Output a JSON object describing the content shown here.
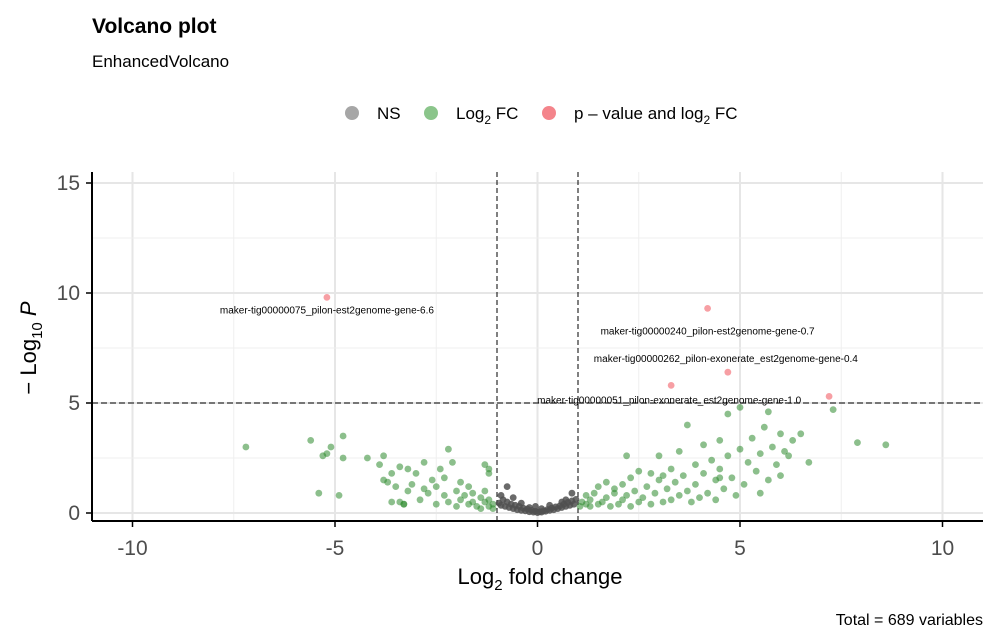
{
  "chart_data": {
    "type": "scatter",
    "title": "Volcano plot",
    "subtitle": "EnhancedVolcano",
    "caption": "Total = 689 variables",
    "xlabel": {
      "pre": "Log",
      "sub": "2",
      "post": " fold change"
    },
    "ylabel": {
      "pre": "− Log",
      "sub": "10",
      "post": " P"
    },
    "xlim": [
      -11,
      11
    ],
    "ylim": [
      0,
      15.5
    ],
    "xticks": [
      -10,
      -5,
      0,
      5,
      10
    ],
    "xtick_labels": [
      "-10",
      "-5",
      "0",
      "5",
      "10"
    ],
    "yticks": [
      0,
      5,
      10,
      15
    ],
    "ytick_labels": [
      "0",
      "5",
      "10",
      "15"
    ],
    "grid": true,
    "legend_position": "top",
    "legend": [
      {
        "key": "ns",
        "pre": "NS",
        "sub": "",
        "post": "",
        "color": "#808080"
      },
      {
        "key": "fc",
        "pre": "Log",
        "sub": "2",
        "post": " FC",
        "color": "#5aac5a"
      },
      {
        "key": "pfc",
        "pre": "p – value and log",
        "sub": "2",
        "post": " FC",
        "color": "#f0505a"
      }
    ],
    "fc_cutoff": [
      -1,
      1
    ],
    "p_cutoff": 5,
    "series": [
      {
        "key": "fc",
        "color": "#2e8b2e",
        "points": [
          [
            -7.2,
            3.0
          ],
          [
            -5.6,
            3.3
          ],
          [
            -5.2,
            2.7
          ],
          [
            -5.3,
            2.6
          ],
          [
            -5.1,
            3.0
          ],
          [
            -4.8,
            3.5
          ],
          [
            -4.8,
            2.5
          ],
          [
            -5.4,
            0.9
          ],
          [
            -4.9,
            0.8
          ],
          [
            -4.2,
            2.5
          ],
          [
            -3.9,
            2.2
          ],
          [
            -3.8,
            2.6
          ],
          [
            -3.8,
            1.5
          ],
          [
            -3.7,
            1.4
          ],
          [
            -3.6,
            1.8
          ],
          [
            -3.5,
            1.2
          ],
          [
            -3.6,
            0.5
          ],
          [
            -3.4,
            0.5
          ],
          [
            -3.3,
            0.4
          ],
          [
            -3.2,
            1.0
          ],
          [
            -3.4,
            2.1
          ],
          [
            -3.2,
            2.0
          ],
          [
            -3.1,
            1.3
          ],
          [
            -3.0,
            1.8
          ],
          [
            -2.9,
            0.6
          ],
          [
            -2.8,
            2.3
          ],
          [
            -2.8,
            1.1
          ],
          [
            -2.7,
            0.9
          ],
          [
            -2.6,
            1.5
          ],
          [
            -2.5,
            0.4
          ],
          [
            -2.4,
            2.0
          ],
          [
            -2.5,
            1.2
          ],
          [
            -2.3,
            0.8
          ],
          [
            -2.3,
            1.6
          ],
          [
            -2.2,
            0.5
          ],
          [
            -2.1,
            2.3
          ],
          [
            -2.0,
            1.0
          ],
          [
            -2.0,
            0.3
          ],
          [
            -1.9,
            1.4
          ],
          [
            -1.9,
            0.6
          ],
          [
            -1.8,
            0.8
          ],
          [
            -1.7,
            0.4
          ],
          [
            -1.7,
            1.2
          ],
          [
            -1.6,
            0.5
          ],
          [
            -1.6,
            0.9
          ],
          [
            -1.5,
            0.3
          ],
          [
            -1.4,
            0.7
          ],
          [
            -1.4,
            0.2
          ],
          [
            -1.3,
            0.5
          ],
          [
            -1.3,
            1.0
          ],
          [
            -1.2,
            0.3
          ],
          [
            -1.2,
            0.6
          ],
          [
            -1.1,
            0.4
          ],
          [
            -1.1,
            0.2
          ],
          [
            -1.2,
            1.8
          ],
          [
            -1.3,
            2.2
          ],
          [
            -1.2,
            2.0
          ],
          [
            -2.2,
            2.9
          ],
          [
            -3.3,
            0.4
          ],
          [
            1.05,
            0.3
          ],
          [
            1.1,
            0.5
          ],
          [
            1.2,
            0.4
          ],
          [
            1.2,
            0.8
          ],
          [
            1.3,
            0.3
          ],
          [
            1.3,
            0.6
          ],
          [
            1.4,
            0.9
          ],
          [
            1.5,
            0.4
          ],
          [
            1.5,
            1.2
          ],
          [
            1.6,
            0.5
          ],
          [
            1.7,
            0.7
          ],
          [
            1.7,
            1.4
          ],
          [
            1.8,
            0.3
          ],
          [
            1.9,
            0.9
          ],
          [
            1.9,
            1.1
          ],
          [
            2.0,
            0.4
          ],
          [
            2.1,
            1.3
          ],
          [
            2.1,
            0.6
          ],
          [
            2.2,
            0.8
          ],
          [
            2.3,
            1.6
          ],
          [
            2.3,
            0.3
          ],
          [
            2.4,
            1.0
          ],
          [
            2.5,
            0.5
          ],
          [
            2.5,
            1.9
          ],
          [
            2.6,
            0.7
          ],
          [
            2.7,
            1.2
          ],
          [
            2.8,
            0.4
          ],
          [
            2.8,
            1.8
          ],
          [
            2.9,
            0.9
          ],
          [
            3.0,
            2.6
          ],
          [
            3.0,
            1.5
          ],
          [
            3.1,
            0.5
          ],
          [
            3.2,
            1.1
          ],
          [
            3.3,
            2.0
          ],
          [
            3.3,
            0.6
          ],
          [
            3.4,
            1.4
          ],
          [
            3.5,
            2.8
          ],
          [
            3.5,
            0.8
          ],
          [
            3.6,
            1.7
          ],
          [
            3.7,
            4.0
          ],
          [
            3.7,
            1.0
          ],
          [
            3.8,
            0.5
          ],
          [
            3.9,
            2.2
          ],
          [
            3.9,
            1.3
          ],
          [
            4.0,
            0.7
          ],
          [
            4.1,
            3.1
          ],
          [
            4.1,
            1.8
          ],
          [
            4.2,
            0.9
          ],
          [
            4.3,
            2.4
          ],
          [
            4.4,
            1.5
          ],
          [
            4.4,
            0.6
          ],
          [
            4.5,
            3.3
          ],
          [
            4.5,
            2.0
          ],
          [
            4.6,
            1.1
          ],
          [
            4.7,
            4.5
          ],
          [
            4.7,
            2.6
          ],
          [
            4.8,
            1.6
          ],
          [
            4.9,
            0.8
          ],
          [
            5.0,
            2.9
          ],
          [
            5.0,
            4.8
          ],
          [
            5.1,
            1.3
          ],
          [
            5.2,
            2.3
          ],
          [
            5.3,
            3.4
          ],
          [
            5.4,
            1.9
          ],
          [
            5.5,
            0.9
          ],
          [
            5.5,
            2.7
          ],
          [
            5.6,
            3.9
          ],
          [
            5.7,
            4.6
          ],
          [
            5.7,
            1.5
          ],
          [
            5.8,
            3.0
          ],
          [
            5.9,
            2.2
          ],
          [
            6.0,
            3.6
          ],
          [
            6.0,
            1.7
          ],
          [
            6.1,
            2.8
          ],
          [
            6.2,
            2.6
          ],
          [
            6.3,
            3.3
          ],
          [
            6.5,
            3.6
          ],
          [
            6.7,
            2.3
          ],
          [
            7.3,
            4.7
          ],
          [
            7.9,
            3.2
          ],
          [
            8.6,
            3.1
          ],
          [
            4.5,
            1.6
          ],
          [
            3.1,
            1.7
          ],
          [
            2.2,
            2.6
          ]
        ]
      },
      {
        "key": "ns",
        "color": "#505050",
        "points": [
          [
            -0.95,
            0.45
          ],
          [
            -0.9,
            0.35
          ],
          [
            -0.85,
            0.6
          ],
          [
            -0.8,
            0.3
          ],
          [
            -0.75,
            0.5
          ],
          [
            -0.7,
            0.25
          ],
          [
            -0.65,
            0.4
          ],
          [
            -0.6,
            0.2
          ],
          [
            -0.55,
            0.35
          ],
          [
            -0.5,
            0.15
          ],
          [
            -0.45,
            0.3
          ],
          [
            -0.4,
            0.12
          ],
          [
            -0.35,
            0.22
          ],
          [
            -0.3,
            0.1
          ],
          [
            -0.25,
            0.18
          ],
          [
            -0.2,
            0.06
          ],
          [
            -0.15,
            0.12
          ],
          [
            -0.1,
            0.04
          ],
          [
            -0.05,
            0.08
          ],
          [
            0.0,
            0.02
          ],
          [
            0.05,
            0.06
          ],
          [
            0.1,
            0.04
          ],
          [
            0.15,
            0.1
          ],
          [
            0.2,
            0.08
          ],
          [
            0.25,
            0.16
          ],
          [
            0.3,
            0.12
          ],
          [
            0.35,
            0.22
          ],
          [
            0.4,
            0.15
          ],
          [
            0.45,
            0.28
          ],
          [
            0.5,
            0.2
          ],
          [
            0.55,
            0.32
          ],
          [
            0.6,
            0.25
          ],
          [
            0.65,
            0.4
          ],
          [
            0.7,
            0.3
          ],
          [
            0.75,
            0.48
          ],
          [
            0.8,
            0.35
          ],
          [
            0.85,
            0.55
          ],
          [
            0.9,
            0.4
          ],
          [
            0.95,
            0.62
          ],
          [
            -0.75,
            1.2
          ],
          [
            -0.9,
            0.8
          ],
          [
            -0.6,
            0.7
          ],
          [
            0.7,
            0.6
          ],
          [
            0.85,
            0.9
          ],
          [
            0.6,
            0.5
          ],
          [
            -0.4,
            0.45
          ],
          [
            0.3,
            0.35
          ],
          [
            -0.2,
            0.25
          ],
          [
            0.1,
            0.2
          ],
          [
            -0.05,
            0.3
          ]
        ]
      },
      {
        "key": "pfc",
        "color": "#f0505a",
        "points": [
          [
            -5.2,
            9.8
          ],
          [
            4.2,
            9.3
          ],
          [
            4.7,
            6.4
          ],
          [
            3.3,
            5.8
          ],
          [
            7.2,
            5.3
          ]
        ]
      }
    ],
    "labels": [
      {
        "text": "maker-tig00000075_pilon-est2genome-gene-6.6",
        "x": -5.2,
        "y": 9.8
      },
      {
        "text": "maker-tig00000240_pilon-est2genome-gene-0.7",
        "x": 4.2,
        "y": 9.3
      },
      {
        "text": "maker-tig00000262_pilon-exonerate_est2genome-gene-0.4",
        "x": 4.7,
        "y": 6.4
      },
      {
        "text": "maker-tig00000051_pilon-exonerate_est2genome-gene-1.0",
        "x": 3.3,
        "y": 5.8
      }
    ]
  }
}
